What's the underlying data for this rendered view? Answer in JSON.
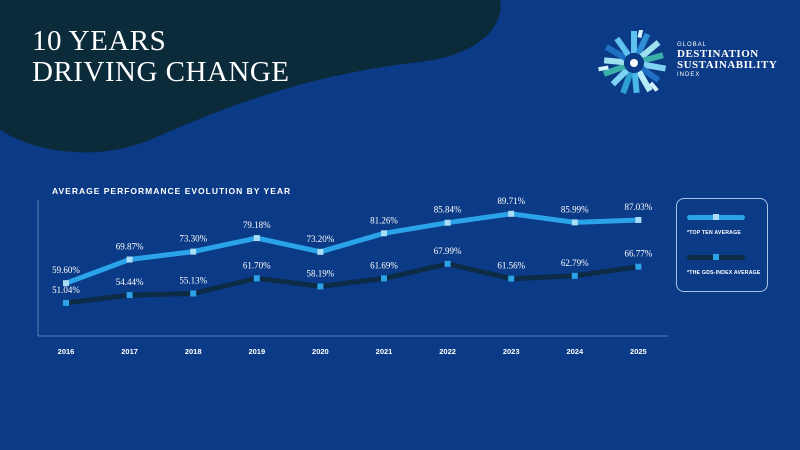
{
  "header": {
    "title_line1": "10 YEARS",
    "title_line2": "DRIVING CHANGE"
  },
  "logo": {
    "line1": "GLOBAL",
    "line2": "DESTINATION",
    "line3": "SUSTAINABILITY",
    "line4": "INDEX"
  },
  "colors": {
    "background": "#0b3a86",
    "blob": "#0b2a3a",
    "top_ten": "#2aa3e8",
    "gds_avg": "#0d2b45",
    "marker": "#a9dcf5"
  },
  "chart_data": {
    "type": "line",
    "title": "AVERAGE PERFORMANCE EVOLUTION BY YEAR",
    "x": [
      "2016",
      "2017",
      "2018",
      "2019",
      "2020",
      "2021",
      "2022",
      "2023",
      "2024",
      "2025"
    ],
    "series": [
      {
        "name": "*TOP TEN AVERAGE",
        "values": [
          59.6,
          69.87,
          73.3,
          79.18,
          73.2,
          81.26,
          85.84,
          89.71,
          85.99,
          87.03
        ],
        "labels": [
          "59.60%",
          "69.87%",
          "73.30%",
          "79.18%",
          "73.20%",
          "81.26%",
          "85.84%",
          "89.71%",
          "85.99%",
          "87.03%"
        ]
      },
      {
        "name": "*THE GDS-INDEX AVERAGE",
        "values": [
          51.04,
          54.44,
          55.13,
          61.7,
          58.19,
          61.69,
          67.99,
          61.56,
          62.79,
          66.77
        ],
        "labels": [
          "51.04%",
          "54.44%",
          "55.13%",
          "61.70%",
          "58.19%",
          "61.69%",
          "67.99%",
          "61.56%",
          "62.79%",
          "66.77%"
        ]
      }
    ],
    "grid": false,
    "legend": "right"
  }
}
